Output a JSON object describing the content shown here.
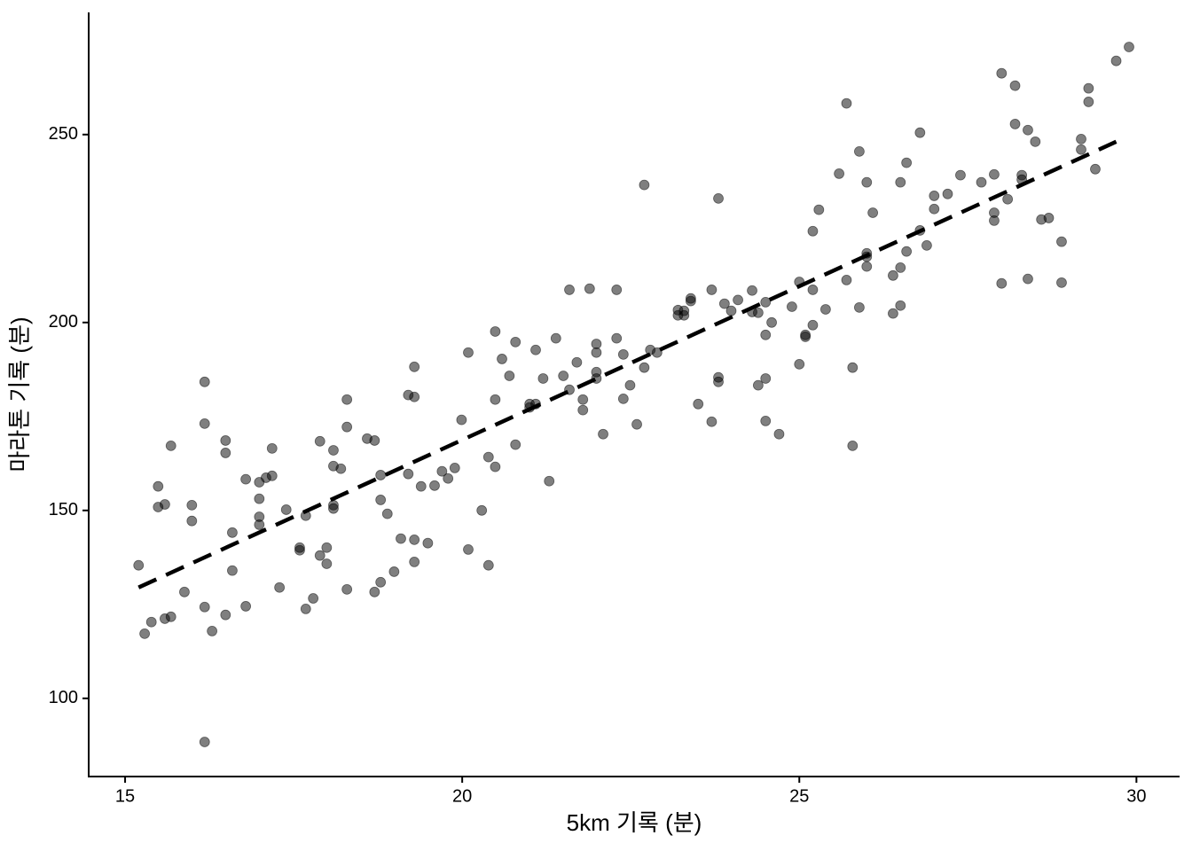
{
  "chart_data": {
    "type": "scatter",
    "x_label": "5km 기록 (분)",
    "y_label": "마라톤 기록 (분)",
    "xlim": [
      14.46,
      30.64
    ],
    "ylim": [
      79.2,
      282.5
    ],
    "xticks": [
      15,
      20,
      25,
      30
    ],
    "yticks": [
      100,
      150,
      200,
      250
    ],
    "grid": false,
    "points": {
      "color": "#000000",
      "opacity": 0.5,
      "x": [
        15.2,
        15.29,
        15.39,
        15.49,
        15.49,
        15.59,
        15.59,
        15.68,
        15.68,
        15.88,
        15.99,
        15.99,
        16.18,
        16.18,
        16.18,
        16.18,
        16.29,
        16.49,
        16.49,
        16.49,
        16.59,
        16.59,
        16.79,
        16.79,
        16.99,
        16.99,
        16.99,
        16.99,
        17.09,
        17.18,
        17.18,
        17.29,
        17.39,
        17.59,
        17.59,
        17.68,
        17.68,
        17.79,
        17.89,
        17.89,
        17.99,
        17.99,
        18.09,
        18.09,
        18.09,
        18.09,
        18.2,
        18.29,
        18.29,
        18.29,
        18.59,
        18.7,
        18.7,
        18.79,
        18.79,
        18.79,
        18.89,
        18.99,
        19.09,
        19.2,
        19.2,
        19.29,
        19.29,
        19.29,
        19.29,
        19.39,
        19.49,
        19.59,
        19.7,
        19.79,
        19.89,
        19.99,
        20.09,
        20.09,
        20.29,
        20.39,
        20.39,
        20.49,
        20.49,
        20.49,
        20.59,
        20.7,
        20.79,
        20.79,
        21.0,
        21.0,
        21.09,
        21.09,
        21.2,
        21.29,
        21.39,
        21.5,
        21.59,
        21.59,
        21.7,
        21.79,
        21.79,
        21.89,
        21.99,
        21.99,
        21.99,
        21.99,
        22.09,
        22.29,
        22.29,
        22.39,
        22.39,
        22.49,
        22.59,
        22.7,
        22.7,
        22.79,
        22.89,
        23.2,
        23.2,
        23.29,
        23.29,
        23.39,
        23.39,
        23.5,
        23.7,
        23.7,
        23.8,
        23.8,
        23.8,
        23.89,
        23.99,
        24.09,
        24.3,
        24.3,
        24.39,
        24.39,
        24.5,
        24.5,
        24.5,
        24.5,
        24.59,
        24.7,
        24.89,
        25.0,
        25.0,
        25.09,
        25.09,
        25.2,
        25.2,
        25.2,
        25.29,
        25.39,
        25.59,
        25.7,
        25.7,
        25.79,
        25.79,
        25.89,
        25.89,
        26.0,
        26.0,
        26.0,
        26.0,
        26.09,
        26.39,
        26.39,
        26.5,
        26.5,
        26.5,
        26.59,
        26.59,
        26.79,
        26.79,
        26.89,
        27.0,
        27.0,
        27.2,
        27.39,
        27.7,
        27.89,
        27.89,
        27.89,
        28.0,
        28.0,
        28.09,
        28.2,
        28.2,
        28.3,
        28.3,
        28.39,
        28.39,
        28.5,
        28.59,
        28.7,
        28.89,
        28.89,
        29.18,
        29.18,
        29.29,
        29.29,
        29.39,
        29.7,
        29.89
      ],
      "y": [
        135.4,
        117.2,
        120.3,
        156.4,
        150.9,
        151.6,
        121.2,
        121.7,
        167.2,
        128.3,
        151.4,
        147.2,
        184.2,
        173.1,
        124.3,
        88.4,
        117.9,
        168.6,
        165.3,
        122.2,
        144.1,
        134.0,
        158.3,
        124.5,
        157.5,
        153.1,
        148.3,
        146.2,
        158.7,
        159.2,
        166.5,
        129.5,
        150.2,
        140.1,
        139.4,
        148.6,
        123.8,
        126.6,
        168.4,
        138.0,
        140.1,
        135.8,
        166.0,
        161.8,
        151.4,
        150.5,
        161.1,
        179.5,
        172.2,
        129.0,
        169.1,
        168.6,
        128.3,
        159.4,
        152.8,
        130.9,
        149.1,
        133.7,
        142.5,
        180.7,
        159.7,
        188.2,
        180.2,
        142.2,
        136.3,
        156.4,
        141.3,
        156.6,
        160.4,
        158.5,
        161.3,
        174.1,
        192.0,
        139.6,
        150.0,
        164.2,
        135.4,
        197.6,
        179.5,
        161.6,
        190.3,
        185.8,
        194.8,
        167.5,
        177.4,
        178.3,
        192.7,
        178.3,
        185.1,
        157.8,
        195.8,
        185.8,
        208.7,
        182.1,
        189.4,
        179.5,
        176.7,
        209.0,
        194.3,
        192.0,
        186.8,
        185.1,
        170.3,
        208.7,
        195.8,
        191.5,
        179.7,
        183.3,
        172.9,
        236.6,
        188.0,
        192.7,
        192.0,
        203.3,
        201.9,
        203.1,
        201.9,
        206.4,
        205.7,
        178.3,
        208.7,
        173.6,
        233.0,
        185.4,
        184.2,
        205.0,
        203.1,
        206.0,
        208.5,
        202.8,
        202.6,
        183.3,
        205.4,
        196.7,
        185.1,
        173.8,
        200.0,
        170.3,
        204.2,
        210.8,
        188.9,
        196.2,
        196.7,
        224.3,
        208.7,
        199.3,
        230.0,
        203.5,
        239.6,
        258.3,
        211.3,
        188.0,
        167.2,
        245.5,
        204.0,
        237.3,
        218.4,
        217.5,
        214.9,
        229.2,
        212.5,
        202.4,
        237.3,
        214.6,
        204.5,
        242.5,
        218.9,
        250.5,
        224.5,
        220.5,
        233.7,
        230.2,
        234.2,
        239.2,
        237.3,
        239.4,
        229.2,
        227.1,
        266.3,
        210.4,
        232.8,
        263.0,
        252.8,
        239.2,
        238.0,
        251.2,
        211.6,
        248.1,
        227.4,
        227.8,
        221.5,
        210.6,
        248.8,
        246.0,
        262.3,
        258.7,
        240.8,
        269.6,
        273.3
      ]
    },
    "fit_line": {
      "color": "#000000",
      "dashed": true,
      "x": [
        15.2,
        29.7
      ],
      "y": [
        129.5,
        248.1
      ]
    }
  }
}
